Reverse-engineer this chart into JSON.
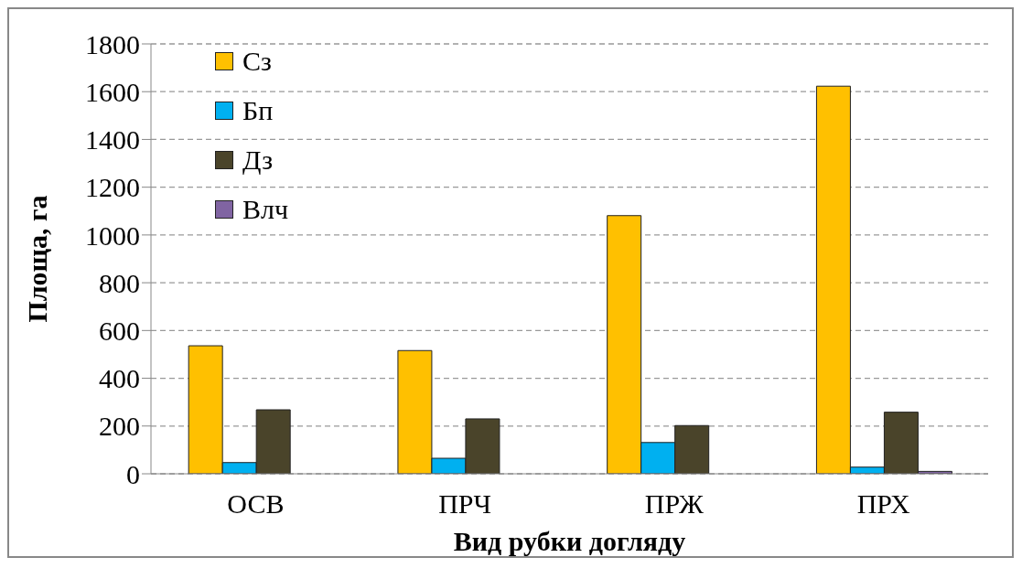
{
  "chart_data": {
    "type": "bar",
    "xlabel": "Вид рубки догляду",
    "ylabel": "Площа, га",
    "categories": [
      "ОСВ",
      "ПРЧ",
      "ПРЖ",
      "ПРХ"
    ],
    "series": [
      {
        "name": "Сз",
        "color": "#ffc000",
        "values": [
          536,
          516,
          1081,
          1623
        ]
      },
      {
        "name": "Бп",
        "color": "#00b0f0",
        "values": [
          47,
          65,
          131,
          28
        ]
      },
      {
        "name": "Дз",
        "color": "#4a442a",
        "values": [
          268,
          230,
          202,
          258
        ]
      },
      {
        "name": "Влч",
        "color": "#8064a2",
        "values": [
          0,
          0,
          0,
          10
        ]
      }
    ],
    "ylim": [
      0,
      1800
    ],
    "yticks": [
      0,
      200,
      400,
      600,
      800,
      1000,
      1200,
      1400,
      1600,
      1800
    ],
    "grid": "y",
    "legend": "top left"
  }
}
